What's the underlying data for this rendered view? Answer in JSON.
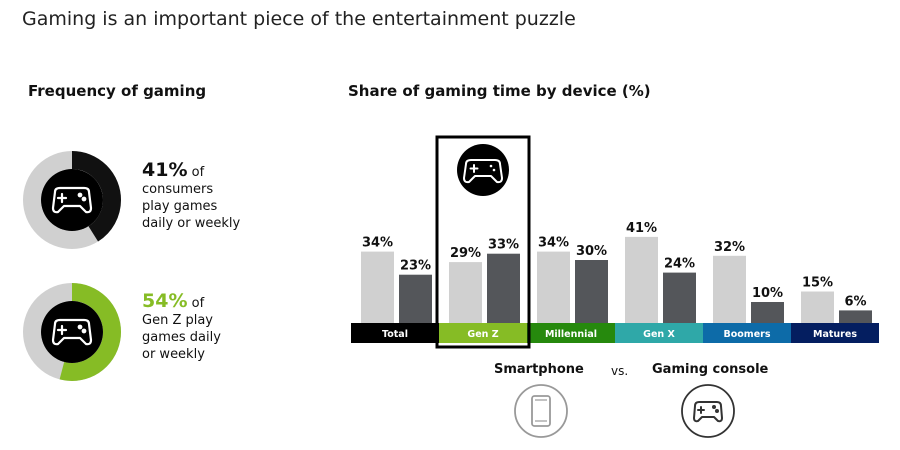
{
  "headline": "Gaming is an important piece of the entertainment puzzle",
  "frequency": {
    "title": "Frequency of gaming",
    "stats": [
      {
        "value": "41%",
        "suffix": " of",
        "lines": [
          "consumers",
          "play games",
          "daily or weekly"
        ],
        "fraction": 0.41,
        "color": "#111111"
      },
      {
        "value": "54%",
        "suffix": " of",
        "lines": [
          "Gen Z play",
          "games daily",
          "or weekly"
        ],
        "fraction": 0.54,
        "color": "#86bc25"
      }
    ]
  },
  "chart_data": {
    "type": "bar",
    "title": "Share of gaming time by device (%)",
    "categories": [
      "Total",
      "Gen Z",
      "Millennial",
      "Gen X",
      "Boomers",
      "Matures"
    ],
    "category_colors": [
      "#000000",
      "#86bc25",
      "#26890d",
      "#2fa8a8",
      "#0d6ba8",
      "#041e60"
    ],
    "highlighted_category": "Gen Z",
    "series": [
      {
        "name": "Smartphone",
        "values": [
          34,
          29,
          34,
          41,
          32,
          15
        ],
        "color": "#d0d0d0"
      },
      {
        "name": "Gaming console",
        "values": [
          23,
          33,
          30,
          24,
          10,
          6
        ],
        "color": "#54565a"
      }
    ],
    "value_suffix": "%",
    "ylim": [
      0,
      50
    ]
  },
  "legend": {
    "smartphone": "Smartphone",
    "vs": "vs.",
    "console": "Gaming console"
  }
}
